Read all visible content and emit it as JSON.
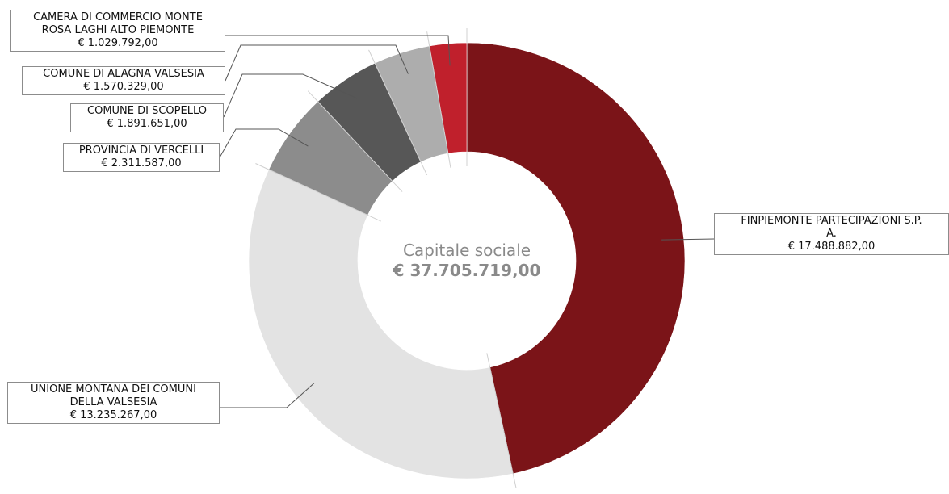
{
  "chart_data": {
    "type": "pie",
    "donut": true,
    "center": {
      "title": "Capitale sociale",
      "total": "€ 37.705.719,00",
      "total_value": 37705719
    },
    "slices": [
      {
        "name": "FINPIEMONTE PARTECIPAZIONI S.P. A.",
        "lines": [
          "FINPIEMONTE PARTECIPAZIONI S.P.",
          "A."
        ],
        "amount": "€ 17.488.882,00",
        "value": 17488882,
        "color": "#7b1418"
      },
      {
        "name": "UNIONE MONTANA DEI COMUNI DELLA VALSESIA",
        "lines": [
          "UNIONE MONTANA DEI COMUNI",
          "DELLA VALSESIA"
        ],
        "amount": "€ 13.235.267,00",
        "value": 13235267,
        "color": "#e3e3e3"
      },
      {
        "name": "PROVINCIA DI VERCELLI",
        "lines": [
          "PROVINCIA DI VERCELLI"
        ],
        "amount": "€ 2.311.587,00",
        "value": 2311587,
        "color": "#8c8c8c"
      },
      {
        "name": "COMUNE DI SCOPELLO",
        "lines": [
          "COMUNE DI SCOPELLO"
        ],
        "amount": "€ 1.891.651,00",
        "value": 1891651,
        "color": "#575757"
      },
      {
        "name": "COMUNE DI ALAGNA VALSESIA",
        "lines": [
          "COMUNE DI ALAGNA VALSESIA"
        ],
        "amount": "€ 1.570.329,00",
        "value": 1570329,
        "color": "#adadad"
      },
      {
        "name": "CAMERA DI COMMERCIO MONTE ROSA LAGHI ALTO PIEMONTE",
        "lines": [
          "CAMERA DI COMMERCIO MONTE",
          "ROSA LAGHI ALTO PIEMONTE"
        ],
        "amount": "€ 1.029.792,00",
        "value": 1029792,
        "color": "#c0202c"
      }
    ]
  }
}
